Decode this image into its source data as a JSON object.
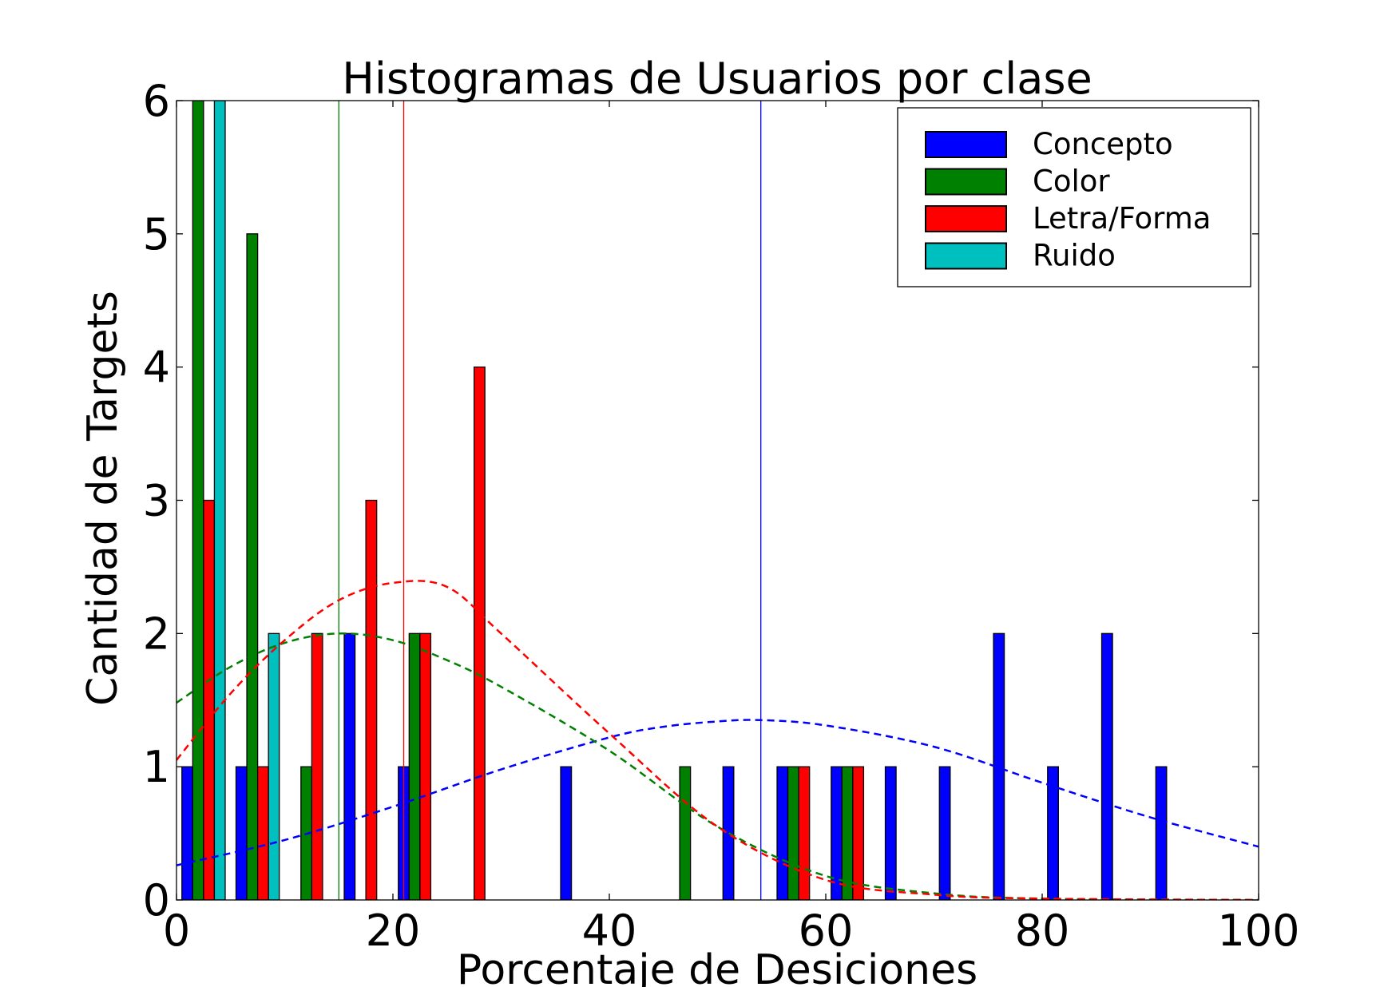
{
  "chart_data": {
    "type": "bar",
    "title": "Histogramas de Usuarios por clase",
    "xlabel": "Porcentaje de Desiciones",
    "ylabel": "Cantidad de Targets",
    "xlim": [
      0,
      100
    ],
    "ylim": [
      0,
      6
    ],
    "xticks": [
      "0",
      "20",
      "40",
      "60",
      "80",
      "100"
    ],
    "yticks": [
      "0",
      "1",
      "2",
      "3",
      "4",
      "5",
      "6"
    ],
    "grid": false,
    "legend_position": "top-right",
    "bar_width": 1.0,
    "series": [
      {
        "name": "Concepto",
        "color": "#0000ff",
        "bars": [
          {
            "x": 1,
            "y": 1
          },
          {
            "x": 6,
            "y": 1
          },
          {
            "x": 16,
            "y": 2
          },
          {
            "x": 21,
            "y": 1
          },
          {
            "x": 36,
            "y": 1
          },
          {
            "x": 51,
            "y": 1
          },
          {
            "x": 56,
            "y": 1
          },
          {
            "x": 61,
            "y": 1
          },
          {
            "x": 66,
            "y": 1
          },
          {
            "x": 71,
            "y": 1
          },
          {
            "x": 76,
            "y": 2
          },
          {
            "x": 81,
            "y": 1
          },
          {
            "x": 86,
            "y": 2
          },
          {
            "x": 91,
            "y": 1
          }
        ],
        "mean": 54,
        "fit_curve": [
          [
            0,
            0.26
          ],
          [
            10,
            0.45
          ],
          [
            20,
            0.7
          ],
          [
            30,
            0.98
          ],
          [
            40,
            1.22
          ],
          [
            45,
            1.3
          ],
          [
            50,
            1.34
          ],
          [
            54,
            1.35
          ],
          [
            60,
            1.31
          ],
          [
            70,
            1.15
          ],
          [
            80,
            0.88
          ],
          [
            90,
            0.62
          ],
          [
            100,
            0.4
          ]
        ]
      },
      {
        "name": "Color",
        "color": "#008000",
        "bars": [
          {
            "x": 2,
            "y": 6
          },
          {
            "x": 7,
            "y": 5
          },
          {
            "x": 12,
            "y": 1
          },
          {
            "x": 22,
            "y": 2
          },
          {
            "x": 47,
            "y": 1
          },
          {
            "x": 57,
            "y": 1
          },
          {
            "x": 62,
            "y": 1
          }
        ],
        "mean": 15,
        "fit_curve": [
          [
            0,
            1.48
          ],
          [
            5,
            1.75
          ],
          [
            10,
            1.93
          ],
          [
            15,
            2.0
          ],
          [
            20,
            1.95
          ],
          [
            25,
            1.8
          ],
          [
            30,
            1.6
          ],
          [
            40,
            1.12
          ],
          [
            50,
            0.55
          ],
          [
            60,
            0.18
          ],
          [
            70,
            0.05
          ],
          [
            80,
            0.01
          ],
          [
            100,
            0.0
          ]
        ]
      },
      {
        "name": "Letra/Forma",
        "color": "#ff0000",
        "bars": [
          {
            "x": 3,
            "y": 3
          },
          {
            "x": 8,
            "y": 1
          },
          {
            "x": 13,
            "y": 2
          },
          {
            "x": 18,
            "y": 3
          },
          {
            "x": 23,
            "y": 2
          },
          {
            "x": 28,
            "y": 4
          },
          {
            "x": 58,
            "y": 1
          },
          {
            "x": 63,
            "y": 1
          }
        ],
        "mean": 21,
        "fit_curve": [
          [
            0,
            1.05
          ],
          [
            5,
            1.55
          ],
          [
            10,
            1.95
          ],
          [
            15,
            2.25
          ],
          [
            20,
            2.38
          ],
          [
            25,
            2.35
          ],
          [
            30,
            2.0
          ],
          [
            40,
            1.25
          ],
          [
            50,
            0.55
          ],
          [
            60,
            0.15
          ],
          [
            70,
            0.04
          ],
          [
            80,
            0.01
          ],
          [
            100,
            0.0
          ]
        ]
      },
      {
        "name": "Ruido",
        "color": "#00bfbf",
        "bars": [
          {
            "x": 4,
            "y": 6
          },
          {
            "x": 9,
            "y": 2
          }
        ]
      }
    ]
  }
}
